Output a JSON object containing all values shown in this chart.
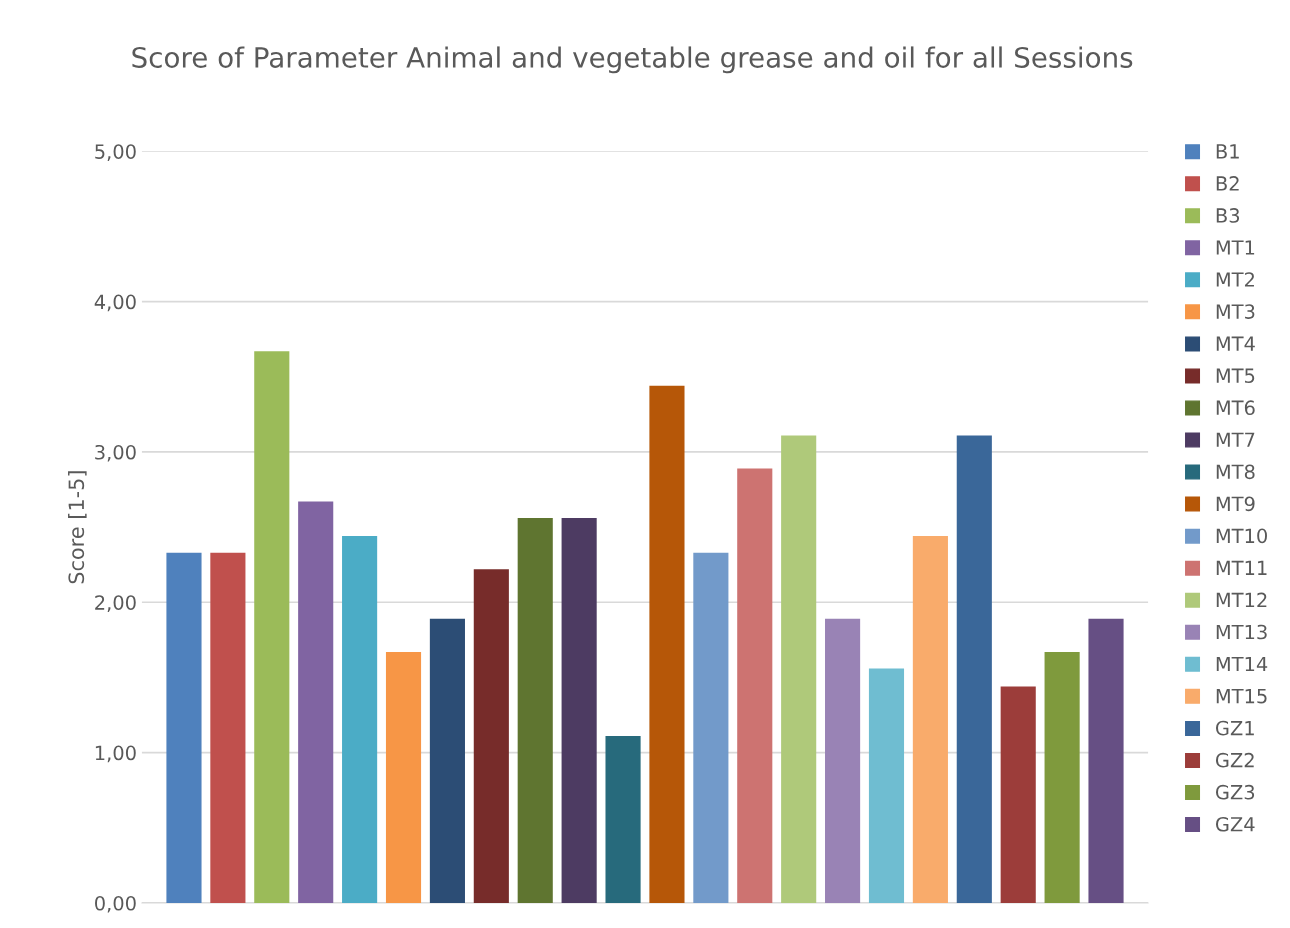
{
  "chart_data": {
    "type": "bar",
    "title": "Score of Parameter Animal and vegetable grease and oil for all Sessions",
    "ylabel": "Score [1-5]",
    "categories": [
      null
    ],
    "series": [
      {
        "name": "B1",
        "color": "#4f81bd",
        "values": [
          2.33
        ]
      },
      {
        "name": "B2",
        "color": "#c0504d",
        "values": [
          2.33
        ]
      },
      {
        "name": "B3",
        "color": "#9bbb59",
        "values": [
          3.67
        ]
      },
      {
        "name": "MT1",
        "color": "#8064a2",
        "values": [
          2.67
        ]
      },
      {
        "name": "MT2",
        "color": "#4bacc6",
        "values": [
          2.44
        ]
      },
      {
        "name": "MT3",
        "color": "#f79646",
        "values": [
          1.67
        ]
      },
      {
        "name": "MT4",
        "color": "#2c4d75",
        "values": [
          1.89
        ]
      },
      {
        "name": "MT5",
        "color": "#772c2a",
        "values": [
          2.22
        ]
      },
      {
        "name": "MT6",
        "color": "#5f7530",
        "values": [
          2.56
        ]
      },
      {
        "name": "MT7",
        "color": "#4d3b62",
        "values": [
          2.56
        ]
      },
      {
        "name": "MT8",
        "color": "#276a7c",
        "values": [
          1.11
        ]
      },
      {
        "name": "MT9",
        "color": "#b65708",
        "values": [
          3.44
        ]
      },
      {
        "name": "MT10",
        "color": "#729aca",
        "values": [
          2.33
        ]
      },
      {
        "name": "MT11",
        "color": "#cd7371",
        "values": [
          2.89
        ]
      },
      {
        "name": "MT12",
        "color": "#afc97a",
        "values": [
          3.11
        ]
      },
      {
        "name": "MT13",
        "color": "#9983b5",
        "values": [
          1.89
        ]
      },
      {
        "name": "MT14",
        "color": "#6fbdd1",
        "values": [
          1.56
        ]
      },
      {
        "name": "MT15",
        "color": "#f9ab6b",
        "values": [
          2.44
        ]
      },
      {
        "name": "GZ1",
        "color": "#3a6799",
        "values": [
          3.11
        ]
      },
      {
        "name": "GZ2",
        "color": "#9c3d3a",
        "values": [
          1.44
        ]
      },
      {
        "name": "GZ3",
        "color": "#7f9a3d",
        "values": [
          1.67
        ]
      },
      {
        "name": "GZ4",
        "color": "#664f84",
        "values": [
          1.89
        ]
      }
    ],
    "ylim": [
      0,
      5
    ],
    "yticks": [
      {
        "value": 0,
        "label": "0,00"
      },
      {
        "value": 1,
        "label": "1,00"
      },
      {
        "value": 2,
        "label": "2,00"
      },
      {
        "value": 3,
        "label": "3,00"
      },
      {
        "value": 4,
        "label": "4,00"
      },
      {
        "value": 5,
        "label": "5,00"
      }
    ],
    "grid": "y",
    "legend": "right"
  }
}
